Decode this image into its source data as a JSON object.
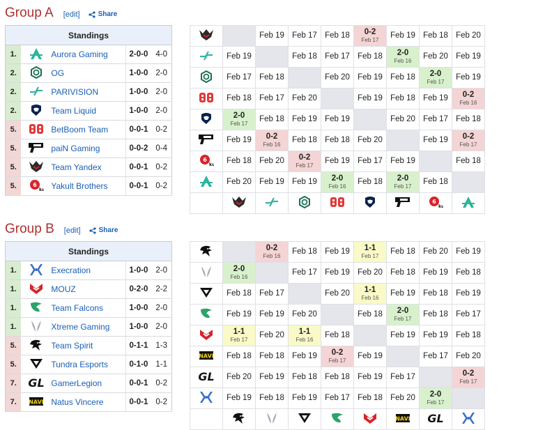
{
  "groups": [
    {
      "title": "Group A",
      "edit": "[edit]",
      "share": "Share",
      "standings_title": "Standings",
      "teams": [
        {
          "rank": "1.",
          "name": "Aurora Gaming",
          "record": "2-0-0",
          "maps": "4-0",
          "status": "g",
          "icon": "aurora-logo",
          "color": "#2bb39a"
        },
        {
          "rank": "2.",
          "name": "OG",
          "record": "1-0-0",
          "maps": "2-0",
          "status": "g",
          "icon": "og-logo",
          "color": "#1d6e55"
        },
        {
          "rank": "2.",
          "name": "PARIVISION",
          "record": "1-0-0",
          "maps": "2-0",
          "status": "g",
          "icon": "parivision-logo",
          "color": "#3ab0a6"
        },
        {
          "rank": "2.",
          "name": "Team Liquid",
          "record": "1-0-0",
          "maps": "2-0",
          "status": "g",
          "icon": "liquid-logo",
          "color": "#0a2350"
        },
        {
          "rank": "5.",
          "name": "BetBoom Team",
          "record": "0-0-1",
          "maps": "0-2",
          "status": "r",
          "icon": "betboom-logo",
          "color": "#e03a3a"
        },
        {
          "rank": "5.",
          "name": "paiN Gaming",
          "record": "0-0-2",
          "maps": "0-4",
          "status": "r",
          "icon": "pain-logo",
          "color": "#111111"
        },
        {
          "rank": "5.",
          "name": "Team Yandex",
          "record": "0-0-1",
          "maps": "0-2",
          "status": "r",
          "icon": "yandex-logo",
          "color": "#b01c2e"
        },
        {
          "rank": "5.",
          "name": "Yakult Brothers",
          "record": "0-0-1",
          "maps": "0-2",
          "status": "r",
          "icon": "yakult-logo",
          "color": "#d8232a"
        }
      ],
      "matrix": [
        [
          {
            "t": "x"
          },
          {
            "t": "n",
            "v": "Feb 19"
          },
          {
            "t": "n",
            "v": "Feb 17"
          },
          {
            "t": "n",
            "v": "Feb 18"
          },
          {
            "t": "l",
            "v": "0-2",
            "d": "Feb 17"
          },
          {
            "t": "n",
            "v": "Feb 19"
          },
          {
            "t": "n",
            "v": "Feb 18"
          },
          {
            "t": "n",
            "v": "Feb 20"
          }
        ],
        [
          {
            "t": "n",
            "v": "Feb 19"
          },
          {
            "t": "x"
          },
          {
            "t": "n",
            "v": "Feb 18"
          },
          {
            "t": "n",
            "v": "Feb 17"
          },
          {
            "t": "n",
            "v": "Feb 18"
          },
          {
            "t": "w",
            "v": "2-0",
            "d": "Feb 16"
          },
          {
            "t": "n",
            "v": "Feb 20"
          },
          {
            "t": "n",
            "v": "Feb 19"
          }
        ],
        [
          {
            "t": "n",
            "v": "Feb 17"
          },
          {
            "t": "n",
            "v": "Feb 18"
          },
          {
            "t": "x"
          },
          {
            "t": "n",
            "v": "Feb 20"
          },
          {
            "t": "n",
            "v": "Feb 19"
          },
          {
            "t": "n",
            "v": "Feb 18"
          },
          {
            "t": "w",
            "v": "2-0",
            "d": "Feb 17"
          },
          {
            "t": "n",
            "v": "Feb 19"
          }
        ],
        [
          {
            "t": "n",
            "v": "Feb 18"
          },
          {
            "t": "n",
            "v": "Feb 17"
          },
          {
            "t": "n",
            "v": "Feb 20"
          },
          {
            "t": "x"
          },
          {
            "t": "n",
            "v": "Feb 19"
          },
          {
            "t": "n",
            "v": "Feb 18"
          },
          {
            "t": "n",
            "v": "Feb 19"
          },
          {
            "t": "l",
            "v": "0-2",
            "d": "Feb 16"
          }
        ],
        [
          {
            "t": "w",
            "v": "2-0",
            "d": "Feb 17"
          },
          {
            "t": "n",
            "v": "Feb 18"
          },
          {
            "t": "n",
            "v": "Feb 19"
          },
          {
            "t": "n",
            "v": "Feb 19"
          },
          {
            "t": "x"
          },
          {
            "t": "n",
            "v": "Feb 20"
          },
          {
            "t": "n",
            "v": "Feb 17"
          },
          {
            "t": "n",
            "v": "Feb 18"
          }
        ],
        [
          {
            "t": "n",
            "v": "Feb 19"
          },
          {
            "t": "l",
            "v": "0-2",
            "d": "Feb 16"
          },
          {
            "t": "n",
            "v": "Feb 18"
          },
          {
            "t": "n",
            "v": "Feb 18"
          },
          {
            "t": "n",
            "v": "Feb 20"
          },
          {
            "t": "x"
          },
          {
            "t": "n",
            "v": "Feb 19"
          },
          {
            "t": "l",
            "v": "0-2",
            "d": "Feb 17"
          }
        ],
        [
          {
            "t": "n",
            "v": "Feb 18"
          },
          {
            "t": "n",
            "v": "Feb 20"
          },
          {
            "t": "l",
            "v": "0-2",
            "d": "Feb 17"
          },
          {
            "t": "n",
            "v": "Feb 19"
          },
          {
            "t": "n",
            "v": "Feb 17"
          },
          {
            "t": "n",
            "v": "Feb 19"
          },
          {
            "t": "x"
          },
          {
            "t": "n",
            "v": "Feb 18"
          }
        ],
        [
          {
            "t": "n",
            "v": "Feb 20"
          },
          {
            "t": "n",
            "v": "Feb 19"
          },
          {
            "t": "n",
            "v": "Feb 19"
          },
          {
            "t": "w",
            "v": "2-0",
            "d": "Feb 16"
          },
          {
            "t": "n",
            "v": "Feb 18"
          },
          {
            "t": "w",
            "v": "2-0",
            "d": "Feb 17"
          },
          {
            "t": "n",
            "v": "Feb 18"
          },
          {
            "t": "x"
          }
        ]
      ],
      "row_icons": [
        "yandex-logo",
        "parivision-logo",
        "og-logo",
        "betboom-logo",
        "liquid-logo",
        "pain-logo",
        "yakult-logo",
        "aurora-logo"
      ],
      "col_icons": [
        "yandex-logo",
        "parivision-logo",
        "og-logo",
        "betboom-logo",
        "liquid-logo",
        "pain-logo",
        "yakult-logo",
        "aurora-logo"
      ]
    },
    {
      "title": "Group B",
      "edit": "[edit]",
      "share": "Share",
      "standings_title": "Standings",
      "teams": [
        {
          "rank": "1.",
          "name": "Execration",
          "record": "1-0-0",
          "maps": "2-0",
          "status": "g",
          "icon": "execration-logo",
          "color": "#3a6fc8"
        },
        {
          "rank": "1.",
          "name": "MOUZ",
          "record": "0-2-0",
          "maps": "2-2",
          "status": "g",
          "icon": "mouz-logo",
          "color": "#d8232a"
        },
        {
          "rank": "1.",
          "name": "Team Falcons",
          "record": "1-0-0",
          "maps": "2-0",
          "status": "g",
          "icon": "falcons-logo",
          "color": "#2ba36a"
        },
        {
          "rank": "1.",
          "name": "Xtreme Gaming",
          "record": "1-0-0",
          "maps": "2-0",
          "status": "g",
          "icon": "xtreme-logo",
          "color": "#9aa0a8"
        },
        {
          "rank": "5.",
          "name": "Team Spirit",
          "record": "0-1-1",
          "maps": "1-3",
          "status": "r",
          "icon": "spirit-logo",
          "color": "#111111"
        },
        {
          "rank": "5.",
          "name": "Tundra Esports",
          "record": "0-1-0",
          "maps": "1-1",
          "status": "r",
          "icon": "tundra-logo",
          "color": "#111111"
        },
        {
          "rank": "7.",
          "name": "GamerLegion",
          "record": "0-0-1",
          "maps": "0-2",
          "status": "r",
          "icon": "gamerlegion-logo",
          "color": "#111111"
        },
        {
          "rank": "7.",
          "name": "Natus Vincere",
          "record": "0-0-1",
          "maps": "0-2",
          "status": "r",
          "icon": "navi-logo",
          "color": "#f0d020"
        }
      ],
      "matrix": [
        [
          {
            "t": "x"
          },
          {
            "t": "l",
            "v": "0-2",
            "d": "Feb 16"
          },
          {
            "t": "n",
            "v": "Feb 18"
          },
          {
            "t": "n",
            "v": "Feb 19"
          },
          {
            "t": "d",
            "v": "1-1",
            "d": "Feb 17"
          },
          {
            "t": "n",
            "v": "Feb 18"
          },
          {
            "t": "n",
            "v": "Feb 20"
          },
          {
            "t": "n",
            "v": "Feb 19"
          }
        ],
        [
          {
            "t": "w",
            "v": "2-0",
            "d": "Feb 16"
          },
          {
            "t": "x"
          },
          {
            "t": "n",
            "v": "Feb 17"
          },
          {
            "t": "n",
            "v": "Feb 19"
          },
          {
            "t": "n",
            "v": "Feb 20"
          },
          {
            "t": "n",
            "v": "Feb 18"
          },
          {
            "t": "n",
            "v": "Feb 19"
          },
          {
            "t": "n",
            "v": "Feb 18"
          }
        ],
        [
          {
            "t": "n",
            "v": "Feb 18"
          },
          {
            "t": "n",
            "v": "Feb 17"
          },
          {
            "t": "x"
          },
          {
            "t": "n",
            "v": "Feb 20"
          },
          {
            "t": "d",
            "v": "1-1",
            "d": "Feb 16"
          },
          {
            "t": "n",
            "v": "Feb 19"
          },
          {
            "t": "n",
            "v": "Feb 18"
          },
          {
            "t": "n",
            "v": "Feb 19"
          }
        ],
        [
          {
            "t": "n",
            "v": "Feb 19"
          },
          {
            "t": "n",
            "v": "Feb 19"
          },
          {
            "t": "n",
            "v": "Feb 20"
          },
          {
            "t": "x"
          },
          {
            "t": "n",
            "v": "Feb 18"
          },
          {
            "t": "w",
            "v": "2-0",
            "d": "Feb 17"
          },
          {
            "t": "n",
            "v": "Feb 18"
          },
          {
            "t": "n",
            "v": "Feb 17"
          }
        ],
        [
          {
            "t": "d",
            "v": "1-1",
            "d": "Feb 17"
          },
          {
            "t": "n",
            "v": "Feb 20"
          },
          {
            "t": "d",
            "v": "1-1",
            "d": "Feb 16"
          },
          {
            "t": "n",
            "v": "Feb 18"
          },
          {
            "t": "x"
          },
          {
            "t": "n",
            "v": "Feb 19"
          },
          {
            "t": "n",
            "v": "Feb 19"
          },
          {
            "t": "n",
            "v": "Feb 18"
          }
        ],
        [
          {
            "t": "n",
            "v": "Feb 18"
          },
          {
            "t": "n",
            "v": "Feb 18"
          },
          {
            "t": "n",
            "v": "Feb 19"
          },
          {
            "t": "l",
            "v": "0-2",
            "d": "Feb 17"
          },
          {
            "t": "n",
            "v": "Feb 19"
          },
          {
            "t": "x"
          },
          {
            "t": "n",
            "v": "Feb 17"
          },
          {
            "t": "n",
            "v": "Feb 20"
          }
        ],
        [
          {
            "t": "n",
            "v": "Feb 20"
          },
          {
            "t": "n",
            "v": "Feb 19"
          },
          {
            "t": "n",
            "v": "Feb 18"
          },
          {
            "t": "n",
            "v": "Feb 18"
          },
          {
            "t": "n",
            "v": "Feb 19"
          },
          {
            "t": "n",
            "v": "Feb 17"
          },
          {
            "t": "x"
          },
          {
            "t": "l",
            "v": "0-2",
            "d": "Feb 17"
          }
        ],
        [
          {
            "t": "n",
            "v": "Feb 19"
          },
          {
            "t": "n",
            "v": "Feb 18"
          },
          {
            "t": "n",
            "v": "Feb 19"
          },
          {
            "t": "n",
            "v": "Feb 17"
          },
          {
            "t": "n",
            "v": "Feb 18"
          },
          {
            "t": "n",
            "v": "Feb 20"
          },
          {
            "t": "w",
            "v": "2-0",
            "d": "Feb 17"
          },
          {
            "t": "x"
          }
        ]
      ],
      "row_icons": [
        "spirit-logo",
        "xtreme-logo",
        "tundra-logo",
        "falcons-logo",
        "mouz-logo",
        "navi-logo",
        "gamerlegion-logo",
        "execration-logo"
      ],
      "col_icons": [
        "spirit-logo",
        "xtreme-logo",
        "tundra-logo",
        "falcons-logo",
        "mouz-logo",
        "navi-logo",
        "gamerlegion-logo",
        "execration-logo"
      ]
    }
  ]
}
